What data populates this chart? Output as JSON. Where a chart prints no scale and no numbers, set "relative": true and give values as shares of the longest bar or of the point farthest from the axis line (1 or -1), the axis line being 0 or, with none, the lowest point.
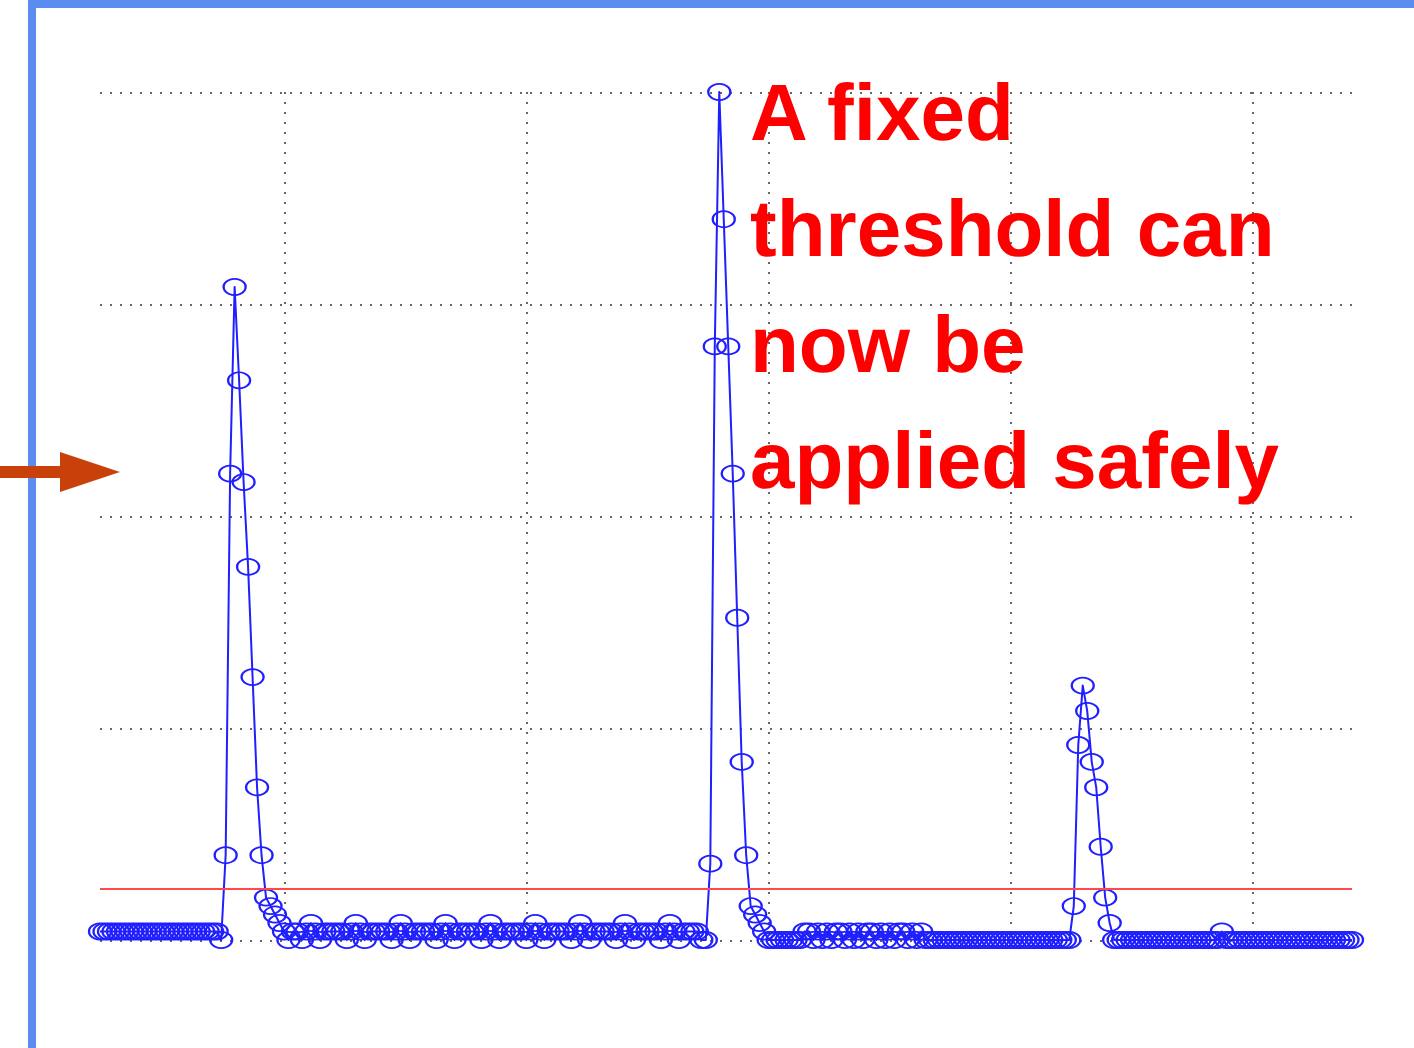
{
  "chart_data": {
    "type": "line",
    "categories": [
      null,
      null,
      null,
      null,
      null,
      null,
      null,
      null,
      null,
      null,
      null,
      null,
      null,
      null,
      null,
      null,
      null,
      null,
      null,
      null,
      null,
      null,
      null,
      null,
      null,
      null,
      null,
      null,
      null,
      null,
      null,
      null,
      null,
      null,
      null,
      null,
      null,
      null,
      null,
      null,
      null,
      null,
      null,
      null,
      null,
      null,
      null,
      null,
      null,
      null,
      null,
      null,
      null,
      null,
      null,
      null,
      null,
      null,
      null,
      null,
      null,
      null,
      null,
      null,
      null,
      null,
      null,
      null,
      null,
      null,
      null,
      null,
      null,
      null,
      null,
      null,
      null,
      null,
      null,
      null,
      null,
      null,
      null,
      null,
      null,
      null,
      null,
      null,
      null,
      null,
      null,
      null,
      null,
      null,
      null,
      null,
      null,
      null,
      null,
      null,
      null,
      null,
      null,
      null,
      null,
      null,
      null,
      null,
      null,
      null,
      null,
      null,
      null,
      null,
      null,
      null,
      null,
      null,
      null,
      null,
      null,
      null,
      null,
      null,
      null,
      null,
      null,
      null,
      null,
      null,
      null,
      null,
      null,
      null,
      null,
      null,
      null,
      null,
      null,
      null,
      null,
      null,
      null,
      null,
      null,
      null,
      null,
      null,
      null,
      null,
      null,
      null,
      null,
      null,
      null,
      null,
      null,
      null,
      null,
      null,
      null,
      null,
      null,
      null,
      null,
      null,
      null,
      null,
      null,
      null,
      null,
      null,
      null,
      null,
      null,
      null,
      null,
      null,
      null,
      null,
      null,
      null,
      null,
      null,
      null,
      null,
      null,
      null,
      null,
      null,
      null,
      null,
      null,
      null,
      null,
      null,
      null,
      null,
      null,
      null,
      null,
      null,
      null,
      null,
      null,
      null,
      null,
      null,
      null,
      null,
      null,
      null,
      null,
      null,
      null,
      null,
      null,
      null,
      null,
      null,
      null,
      null,
      null,
      null,
      null,
      null,
      null,
      null,
      null,
      null,
      null,
      null,
      null,
      null,
      null,
      null,
      null,
      null,
      null,
      null,
      null,
      null,
      null,
      null,
      null,
      null,
      null,
      null,
      null,
      null,
      null,
      null,
      null,
      null,
      null,
      null,
      null,
      null,
      null,
      null,
      null,
      null,
      null,
      null,
      null,
      null,
      null,
      null,
      null,
      null,
      null,
      null,
      null,
      null,
      null,
      null,
      null,
      null,
      null,
      null
    ],
    "values": [
      0.01,
      0.01,
      0.01,
      0.01,
      0.01,
      0.01,
      0.01,
      0.01,
      0.01,
      0.01,
      0.01,
      0.01,
      0.01,
      0.01,
      0.01,
      0.01,
      0.01,
      0.01,
      0.01,
      0.01,
      0.01,
      0.01,
      0.01,
      0.01,
      0.01,
      0.01,
      0.01,
      0,
      0.1,
      0.55,
      0.77,
      0.66,
      0.54,
      0.44,
      0.31,
      0.18,
      0.1,
      0.05,
      0.04,
      0.03,
      0.02,
      0.01,
      0,
      0.01,
      0.01,
      0,
      0.01,
      0.02,
      0.01,
      0,
      0.01,
      0.01,
      0.01,
      0.01,
      0.01,
      0,
      0.01,
      0.02,
      0.01,
      0,
      0.01,
      0.01,
      0.01,
      0.01,
      0.01,
      0,
      0.01,
      0.02,
      0.01,
      0,
      0.01,
      0.01,
      0.01,
      0.01,
      0.01,
      0,
      0.01,
      0.02,
      0.01,
      0,
      0.01,
      0.01,
      0.01,
      0.01,
      0.01,
      0,
      0.01,
      0.02,
      0.01,
      0,
      0.01,
      0.01,
      0.01,
      0.01,
      0.01,
      0,
      0.01,
      0.02,
      0.01,
      0,
      0.01,
      0.01,
      0.01,
      0.01,
      0.01,
      0,
      0.01,
      0.02,
      0.01,
      0,
      0.01,
      0.01,
      0.01,
      0.01,
      0.01,
      0,
      0.01,
      0.02,
      0.01,
      0,
      0.01,
      0.01,
      0.01,
      0.01,
      0.01,
      0,
      0.01,
      0.02,
      0.01,
      0,
      0.01,
      0.01,
      0.01,
      0.01,
      0,
      0,
      0.09,
      0.7,
      1,
      0.85,
      0.7,
      0.55,
      0.38,
      0.21,
      0.1,
      0.04,
      0.03,
      0.02,
      0.01,
      0,
      0,
      0,
      0,
      0,
      0,
      0,
      0,
      0.01,
      0.01,
      0,
      0.01,
      0,
      0.01,
      0,
      0.01,
      0.01,
      0,
      0.01,
      0,
      0.01,
      0,
      0.01,
      0.01,
      0,
      0.01,
      0,
      0.01,
      0,
      0.01,
      0.01,
      0,
      0.01,
      0,
      0.01,
      0,
      0,
      0,
      0,
      0,
      0,
      0,
      0,
      0,
      0,
      0,
      0,
      0,
      0,
      0,
      0,
      0,
      0,
      0,
      0,
      0,
      0,
      0,
      0,
      0,
      0,
      0,
      0,
      0,
      0,
      0,
      0,
      0,
      0.04,
      0.23,
      0.3,
      0.27,
      0.21,
      0.18,
      0.11,
      0.05,
      0.02,
      0,
      0,
      0,
      0,
      0,
      0,
      0,
      0,
      0,
      0,
      0,
      0,
      0,
      0,
      0,
      0,
      0,
      0,
      0,
      0,
      0,
      0,
      0,
      0,
      0.01,
      0,
      0,
      0,
      0,
      0,
      0,
      0,
      0,
      0,
      0,
      0,
      0,
      0,
      0,
      0,
      0,
      0,
      0,
      0,
      0,
      0,
      0,
      0,
      0,
      0,
      0,
      0,
      0,
      0
    ],
    "color": "#1f1fff",
    "relative": true,
    "marker": "circle",
    "grid": true,
    "ref_lines": [
      {
        "axis": "y",
        "value": 0.06,
        "label": null,
        "color": "#ff4a4a"
      }
    ],
    "annotations": [
      "A fixed\nthreshold can\nnow be\napplied safely"
    ]
  }
}
